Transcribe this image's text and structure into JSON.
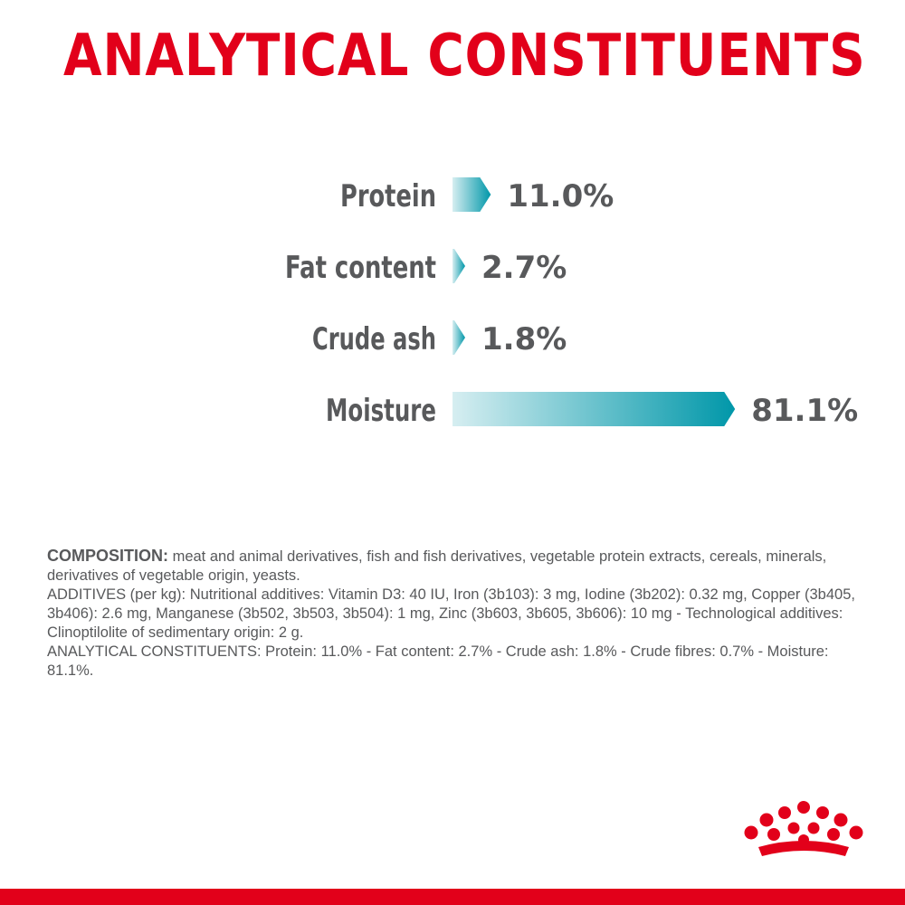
{
  "title": "ANALYTICAL CONSTITUENTS",
  "colors": {
    "title_red": "#e2001a",
    "label_grey": "#58595b",
    "bar_teal_dark": "#0097a9",
    "bar_teal_light": "#d6eef1"
  },
  "chart_data": {
    "type": "bar",
    "orientation": "horizontal",
    "title": "",
    "xlabel": "",
    "ylabel": "",
    "categories": [
      "Protein",
      "Fat content",
      "Crude ash",
      "Moisture"
    ],
    "values": [
      11.0,
      2.7,
      1.8,
      81.1
    ],
    "value_labels": [
      "11.0%",
      "2.7%",
      "1.8%",
      "81.1%"
    ],
    "unit": "%",
    "grid": false,
    "legend": "none"
  },
  "composition": {
    "lead": "COMPOSITION:",
    "text": " meat and animal derivatives, fish and fish derivatives, vegetable protein extracts, cereals, minerals, derivatives of vegetable origin, yeasts.",
    "additives": "ADDITIVES (per kg): Nutritional additives: Vitamin D3: 40 IU, Iron (3b103): 3 mg, Iodine (3b202): 0.32 mg, Copper (3b405, 3b406): 2.6 mg, Manganese (3b502, 3b503, 3b504): 1 mg, Zinc (3b603, 3b605, 3b606): 10 mg - Technological additives: Clinoptilolite of sedimentary origin: 2 g.",
    "analytical": "ANALYTICAL CONSTITUENTS: Protein: 11.0% - Fat content: 2.7% - Crude ash: 1.8% - Crude fibres: 0.7% - Moisture: 81.1%."
  },
  "logo": {
    "icon": "crown-icon"
  }
}
